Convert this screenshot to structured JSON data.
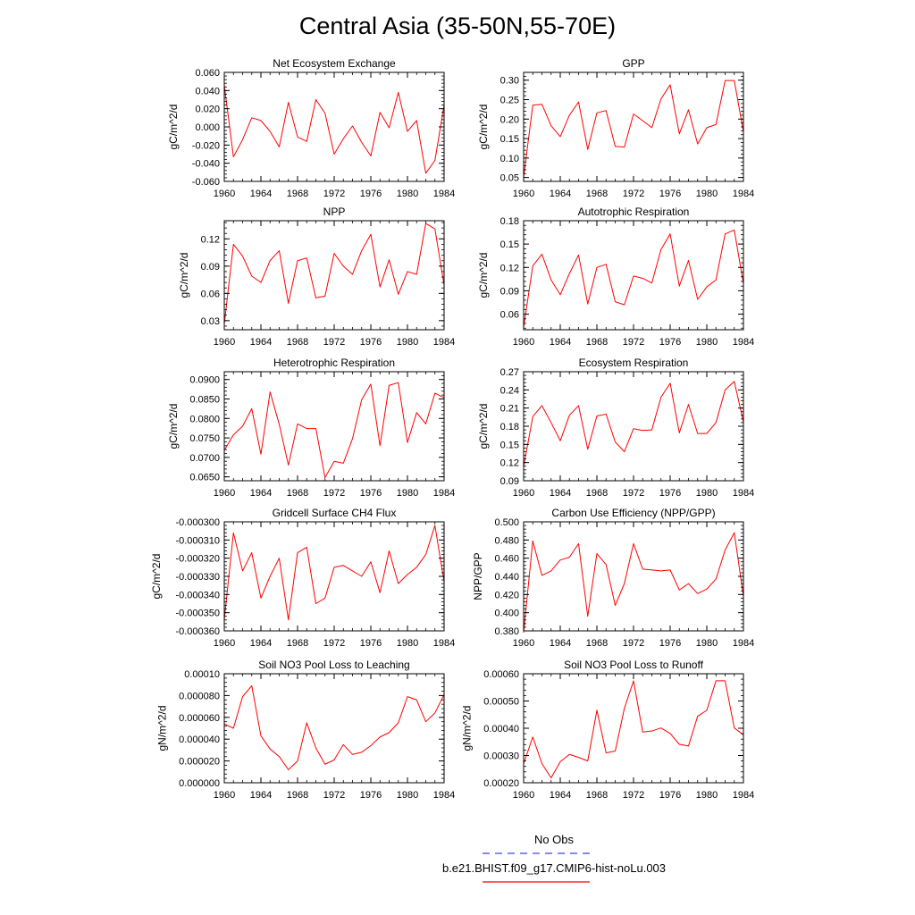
{
  "figure": {
    "title": "Central Asia (35-50N,55-70E)",
    "line_color": "#ff0000",
    "obs_color": "#4040ff"
  },
  "legend": {
    "obs_label": "No Obs",
    "model_label": "b.e21.BHIST.f09_g17.CMIP6-hist-noLu.003"
  },
  "chart_data": [
    {
      "type": "line",
      "title": "Net Ecosystem Exchange",
      "ylabel": "gC/m^2/d",
      "ylim": [
        -0.06,
        0.06
      ],
      "yticks": [
        -0.06,
        -0.04,
        -0.02,
        0.0,
        0.02,
        0.04,
        0.06
      ],
      "ytick_labels": [
        "-0.060",
        "-0.040",
        "-0.020",
        "0.000",
        "0.020",
        "0.040",
        "0.060"
      ],
      "xlim": [
        1960,
        1984
      ],
      "xticks": [
        1960,
        1964,
        1968,
        1972,
        1976,
        1980,
        1984
      ],
      "xtick_labels": [
        "1960",
        "1964",
        "1968",
        "1972",
        "1976",
        "1980",
        "1984"
      ],
      "x": [
        1960,
        1961,
        1962,
        1963,
        1964,
        1965,
        1966,
        1967,
        1968,
        1969,
        1970,
        1971,
        1972,
        1973,
        1974,
        1975,
        1976,
        1977,
        1978,
        1979,
        1980,
        1981,
        1982,
        1983,
        1984
      ],
      "values": [
        0.046,
        -0.033,
        -0.014,
        0.01,
        0.007,
        -0.005,
        -0.022,
        0.027,
        -0.011,
        -0.016,
        0.03,
        0.015,
        -0.03,
        -0.013,
        0.001,
        -0.017,
        -0.032,
        0.016,
        -0.001,
        0.038,
        -0.005,
        0.007,
        -0.051,
        -0.037,
        0.024
      ]
    },
    {
      "type": "line",
      "title": "GPP",
      "ylabel": "gC/m^2/d",
      "ylim": [
        0.04,
        0.32
      ],
      "yticks": [
        0.05,
        0.1,
        0.15,
        0.2,
        0.25,
        0.3
      ],
      "ytick_labels": [
        "0.05",
        "0.10",
        "0.15",
        "0.20",
        "0.25",
        "0.30"
      ],
      "xlim": [
        1960,
        1984
      ],
      "xticks": [
        1960,
        1964,
        1968,
        1972,
        1976,
        1980,
        1984
      ],
      "xtick_labels": [
        "1960",
        "1964",
        "1968",
        "1972",
        "1976",
        "1980",
        "1984"
      ],
      "x": [
        1960,
        1961,
        1962,
        1963,
        1964,
        1965,
        1966,
        1967,
        1968,
        1969,
        1970,
        1971,
        1972,
        1973,
        1974,
        1975,
        1976,
        1977,
        1978,
        1979,
        1980,
        1981,
        1982,
        1983,
        1984
      ],
      "values": [
        0.05,
        0.236,
        0.238,
        0.183,
        0.155,
        0.21,
        0.244,
        0.122,
        0.216,
        0.222,
        0.13,
        0.128,
        0.213,
        0.196,
        0.178,
        0.252,
        0.288,
        0.162,
        0.224,
        0.136,
        0.178,
        0.186,
        0.299,
        0.299,
        0.167
      ]
    },
    {
      "type": "line",
      "title": "NPP",
      "ylabel": "gC/m^2/d",
      "ylim": [
        0.02,
        0.14
      ],
      "yticks": [
        0.03,
        0.06,
        0.09,
        0.12
      ],
      "ytick_labels": [
        "0.03",
        "0.06",
        "0.09",
        "0.12"
      ],
      "xlim": [
        1960,
        1984
      ],
      "xticks": [
        1960,
        1964,
        1968,
        1972,
        1976,
        1980,
        1984
      ],
      "xtick_labels": [
        "1960",
        "1964",
        "1968",
        "1972",
        "1976",
        "1980",
        "1984"
      ],
      "x": [
        1960,
        1961,
        1962,
        1963,
        1964,
        1965,
        1966,
        1967,
        1968,
        1969,
        1970,
        1971,
        1972,
        1973,
        1974,
        1975,
        1976,
        1977,
        1978,
        1979,
        1980,
        1981,
        1982,
        1983,
        1984
      ],
      "values": [
        0.026,
        0.114,
        0.101,
        0.079,
        0.072,
        0.096,
        0.107,
        0.049,
        0.096,
        0.099,
        0.055,
        0.057,
        0.104,
        0.09,
        0.081,
        0.107,
        0.125,
        0.067,
        0.097,
        0.059,
        0.084,
        0.081,
        0.137,
        0.131,
        0.069
      ]
    },
    {
      "type": "line",
      "title": "Autotrophic Respiration",
      "ylabel": "gC/m^2/d",
      "ylim": [
        0.04,
        0.18
      ],
      "yticks": [
        0.06,
        0.09,
        0.12,
        0.15,
        0.18
      ],
      "ytick_labels": [
        "0.06",
        "0.09",
        "0.12",
        "0.15",
        "0.18"
      ],
      "xlim": [
        1960,
        1984
      ],
      "xticks": [
        1960,
        1964,
        1968,
        1972,
        1976,
        1980,
        1984
      ],
      "xtick_labels": [
        "1960",
        "1964",
        "1968",
        "1972",
        "1976",
        "1980",
        "1984"
      ],
      "x": [
        1960,
        1961,
        1962,
        1963,
        1964,
        1965,
        1966,
        1967,
        1968,
        1969,
        1970,
        1971,
        1972,
        1973,
        1974,
        1975,
        1976,
        1977,
        1978,
        1979,
        1980,
        1981,
        1982,
        1983,
        1984
      ],
      "values": [
        0.043,
        0.122,
        0.137,
        0.104,
        0.085,
        0.112,
        0.136,
        0.073,
        0.12,
        0.124,
        0.076,
        0.072,
        0.109,
        0.106,
        0.1,
        0.143,
        0.163,
        0.096,
        0.129,
        0.079,
        0.095,
        0.104,
        0.163,
        0.168,
        0.099
      ]
    },
    {
      "type": "line",
      "title": "Heterotrophic Respiration",
      "ylabel": "gC/m^2/d",
      "ylim": [
        0.064,
        0.092
      ],
      "yticks": [
        0.065,
        0.07,
        0.075,
        0.08,
        0.085,
        0.09
      ],
      "ytick_labels": [
        "0.0650",
        "0.0700",
        "0.0750",
        "0.0800",
        "0.0850",
        "0.0900"
      ],
      "xlim": [
        1960,
        1984
      ],
      "xticks": [
        1960,
        1964,
        1968,
        1972,
        1976,
        1980,
        1984
      ],
      "xtick_labels": [
        "1960",
        "1964",
        "1968",
        "1972",
        "1976",
        "1980",
        "1984"
      ],
      "x": [
        1960,
        1961,
        1962,
        1963,
        1964,
        1965,
        1966,
        1967,
        1968,
        1969,
        1970,
        1971,
        1972,
        1973,
        1974,
        1975,
        1976,
        1977,
        1978,
        1979,
        1980,
        1981,
        1982,
        1983,
        1984
      ],
      "values": [
        0.0718,
        0.0758,
        0.078,
        0.0825,
        0.0708,
        0.0868,
        0.0785,
        0.068,
        0.0786,
        0.0774,
        0.0774,
        0.0648,
        0.069,
        0.0685,
        0.0748,
        0.0848,
        0.0888,
        0.073,
        0.0885,
        0.0892,
        0.0738,
        0.0815,
        0.0786,
        0.0865,
        0.0853
      ]
    },
    {
      "type": "line",
      "title": "Ecosystem Respiration",
      "ylabel": "gC/m^2/d",
      "ylim": [
        0.09,
        0.27
      ],
      "yticks": [
        0.09,
        0.12,
        0.15,
        0.18,
        0.21,
        0.24,
        0.27
      ],
      "ytick_labels": [
        "0.09",
        "0.12",
        "0.15",
        "0.18",
        "0.21",
        "0.24",
        "0.27"
      ],
      "xlim": [
        1960,
        1984
      ],
      "xticks": [
        1960,
        1964,
        1968,
        1972,
        1976,
        1980,
        1984
      ],
      "xtick_labels": [
        "1960",
        "1964",
        "1968",
        "1972",
        "1976",
        "1980",
        "1984"
      ],
      "x": [
        1960,
        1961,
        1962,
        1963,
        1964,
        1965,
        1966,
        1967,
        1968,
        1969,
        1970,
        1971,
        1972,
        1973,
        1974,
        1975,
        1976,
        1977,
        1978,
        1979,
        1980,
        1981,
        1982,
        1983,
        1984
      ],
      "values": [
        0.113,
        0.196,
        0.214,
        0.186,
        0.156,
        0.198,
        0.214,
        0.142,
        0.197,
        0.2,
        0.154,
        0.138,
        0.176,
        0.173,
        0.174,
        0.228,
        0.251,
        0.169,
        0.216,
        0.168,
        0.168,
        0.186,
        0.24,
        0.254,
        0.187
      ]
    },
    {
      "type": "line",
      "title": "Gridcell Surface CH4 Flux",
      "ylabel": "gC/m^2/d",
      "ylim": [
        -0.00036,
        -0.0003
      ],
      "yticks": [
        -0.00036,
        -0.00035,
        -0.00034,
        -0.00033,
        -0.00032,
        -0.00031,
        -0.0003
      ],
      "ytick_labels": [
        "-0.000360",
        "-0.000350",
        "-0.000340",
        "-0.000330",
        "-0.000320",
        "-0.000310",
        "-0.000300"
      ],
      "xlim": [
        1960,
        1984
      ],
      "xticks": [
        1960,
        1964,
        1968,
        1972,
        1976,
        1980,
        1984
      ],
      "xtick_labels": [
        "1960",
        "1964",
        "1968",
        "1972",
        "1976",
        "1980",
        "1984"
      ],
      "x": [
        1960,
        1961,
        1962,
        1963,
        1964,
        1965,
        1966,
        1967,
        1968,
        1969,
        1970,
        1971,
        1972,
        1973,
        1974,
        1975,
        1976,
        1977,
        1978,
        1979,
        1980,
        1981,
        1982,
        1983,
        1984
      ],
      "values": [
        -0.000354,
        -0.000306,
        -0.000327,
        -0.000317,
        -0.000342,
        -0.00033,
        -0.00032,
        -0.000354,
        -0.000317,
        -0.000314,
        -0.000345,
        -0.000342,
        -0.000325,
        -0.000324,
        -0.000327,
        -0.00033,
        -0.000322,
        -0.000339,
        -0.000316,
        -0.000334,
        -0.000329,
        -0.000325,
        -0.000318,
        -0.000302,
        -0.000333
      ]
    },
    {
      "type": "line",
      "title": "Carbon Use Efficiency (NPP/GPP)",
      "ylabel": "NPP/GPP",
      "ylim": [
        0.38,
        0.5
      ],
      "yticks": [
        0.38,
        0.4,
        0.42,
        0.44,
        0.46,
        0.48,
        0.5
      ],
      "ytick_labels": [
        "0.380",
        "0.400",
        "0.420",
        "0.440",
        "0.460",
        "0.480",
        "0.500"
      ],
      "xlim": [
        1960,
        1984
      ],
      "xticks": [
        1960,
        1964,
        1968,
        1972,
        1976,
        1980,
        1984
      ],
      "xtick_labels": [
        "1960",
        "1964",
        "1968",
        "1972",
        "1976",
        "1980",
        "1984"
      ],
      "x": [
        1960,
        1961,
        1962,
        1963,
        1964,
        1965,
        1966,
        1967,
        1968,
        1969,
        1970,
        1971,
        1972,
        1973,
        1974,
        1975,
        1976,
        1977,
        1978,
        1979,
        1980,
        1981,
        1982,
        1983,
        1984
      ],
      "values": [
        0.378,
        0.479,
        0.441,
        0.446,
        0.458,
        0.461,
        0.476,
        0.396,
        0.465,
        0.453,
        0.408,
        0.432,
        0.476,
        0.448,
        0.447,
        0.446,
        0.447,
        0.425,
        0.432,
        0.421,
        0.426,
        0.437,
        0.469,
        0.488,
        0.418
      ]
    },
    {
      "type": "line",
      "title": "Soil NO3 Pool Loss to Leaching",
      "ylabel": "gN/m^2/d",
      "ylim": [
        0.0,
        0.0001
      ],
      "yticks": [
        0.0,
        2e-05,
        4e-05,
        6e-05,
        8e-05,
        0.0001
      ],
      "ytick_labels": [
        "0.000000",
        "0.000020",
        "0.000040",
        "0.000060",
        "0.000080",
        "0.00010"
      ],
      "xlim": [
        1960,
        1984
      ],
      "xticks": [
        1960,
        1964,
        1968,
        1972,
        1976,
        1980,
        1984
      ],
      "xtick_labels": [
        "1960",
        "1964",
        "1968",
        "1972",
        "1976",
        "1980",
        "1984"
      ],
      "x": [
        1960,
        1961,
        1962,
        1963,
        1964,
        1965,
        1966,
        1967,
        1968,
        1969,
        1970,
        1971,
        1972,
        1973,
        1974,
        1975,
        1976,
        1977,
        1978,
        1979,
        1980,
        1981,
        1982,
        1983,
        1984
      ],
      "values": [
        5.4e-05,
        5e-05,
        7.9e-05,
        8.9e-05,
        4.3e-05,
        3.1e-05,
        2.4e-05,
        1.2e-05,
        2e-05,
        5.5e-05,
        3.2e-05,
        1.7e-05,
        2.1e-05,
        3.5e-05,
        2.6e-05,
        2.8e-05,
        3.4e-05,
        4.2e-05,
        4.6e-05,
        5.5e-05,
        7.9e-05,
        7.6e-05,
        5.6e-05,
        6.4e-05,
        8.1e-05
      ]
    },
    {
      "type": "line",
      "title": "Soil NO3 Pool Loss to Runoff",
      "ylabel": "gN/m^2/d",
      "ylim": [
        0.0002,
        0.0006
      ],
      "yticks": [
        0.0002,
        0.0003,
        0.0004,
        0.0005,
        0.0006
      ],
      "ytick_labels": [
        "0.00020",
        "0.00030",
        "0.00040",
        "0.00050",
        "0.00060"
      ],
      "xlim": [
        1960,
        1984
      ],
      "xticks": [
        1960,
        1964,
        1968,
        1972,
        1976,
        1980,
        1984
      ],
      "xtick_labels": [
        "1960",
        "1964",
        "1968",
        "1972",
        "1976",
        "1980",
        "1984"
      ],
      "x": [
        1960,
        1961,
        1962,
        1963,
        1964,
        1965,
        1966,
        1967,
        1968,
        1969,
        1970,
        1971,
        1972,
        1973,
        1974,
        1975,
        1976,
        1977,
        1978,
        1979,
        1980,
        1981,
        1982,
        1983,
        1984
      ],
      "values": [
        0.00027,
        0.000368,
        0.00027,
        0.000218,
        0.000277,
        0.000304,
        0.000293,
        0.00028,
        0.000466,
        0.00031,
        0.000316,
        0.000473,
        0.000574,
        0.000386,
        0.00039,
        0.000401,
        0.000381,
        0.000341,
        0.000335,
        0.000444,
        0.000466,
        0.000574,
        0.000574,
        0.000401,
        0.000376
      ]
    }
  ]
}
